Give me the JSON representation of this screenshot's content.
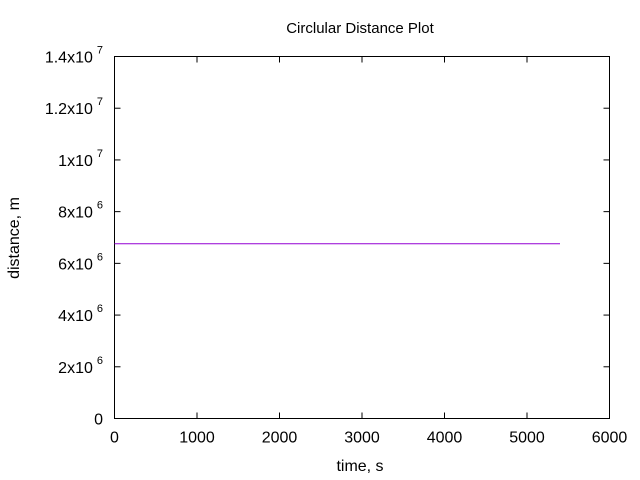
{
  "chart_data": {
    "type": "line",
    "title": "Circlular Distance Plot",
    "xlabel": "time, s",
    "ylabel": "distance, m",
    "xlim": [
      0,
      6000
    ],
    "ylim": [
      0,
      14000000
    ],
    "x_ticks": [
      {
        "value": 0,
        "label": "0"
      },
      {
        "value": 1000,
        "label": "1000"
      },
      {
        "value": 2000,
        "label": "2000"
      },
      {
        "value": 3000,
        "label": "3000"
      },
      {
        "value": 4000,
        "label": "4000"
      },
      {
        "value": 5000,
        "label": "5000"
      },
      {
        "value": 6000,
        "label": "6000"
      }
    ],
    "y_ticks": [
      {
        "value": 0,
        "mantissa": "0",
        "exponent": ""
      },
      {
        "value": 2000000,
        "mantissa": "2x10",
        "exponent": "6"
      },
      {
        "value": 4000000,
        "mantissa": "4x10",
        "exponent": "6"
      },
      {
        "value": 6000000,
        "mantissa": "6x10",
        "exponent": "6"
      },
      {
        "value": 8000000,
        "mantissa": "8x10",
        "exponent": "6"
      },
      {
        "value": 10000000,
        "mantissa": "1x10",
        "exponent": "7"
      },
      {
        "value": 12000000,
        "mantissa": "1.2x10",
        "exponent": "7"
      },
      {
        "value": 14000000,
        "mantissa": "1.4x10",
        "exponent": "7"
      }
    ],
    "grid": false,
    "series": [
      {
        "color": "#9400d3",
        "x": [
          0,
          5400
        ],
        "y": [
          6760000,
          6760000
        ]
      }
    ]
  }
}
